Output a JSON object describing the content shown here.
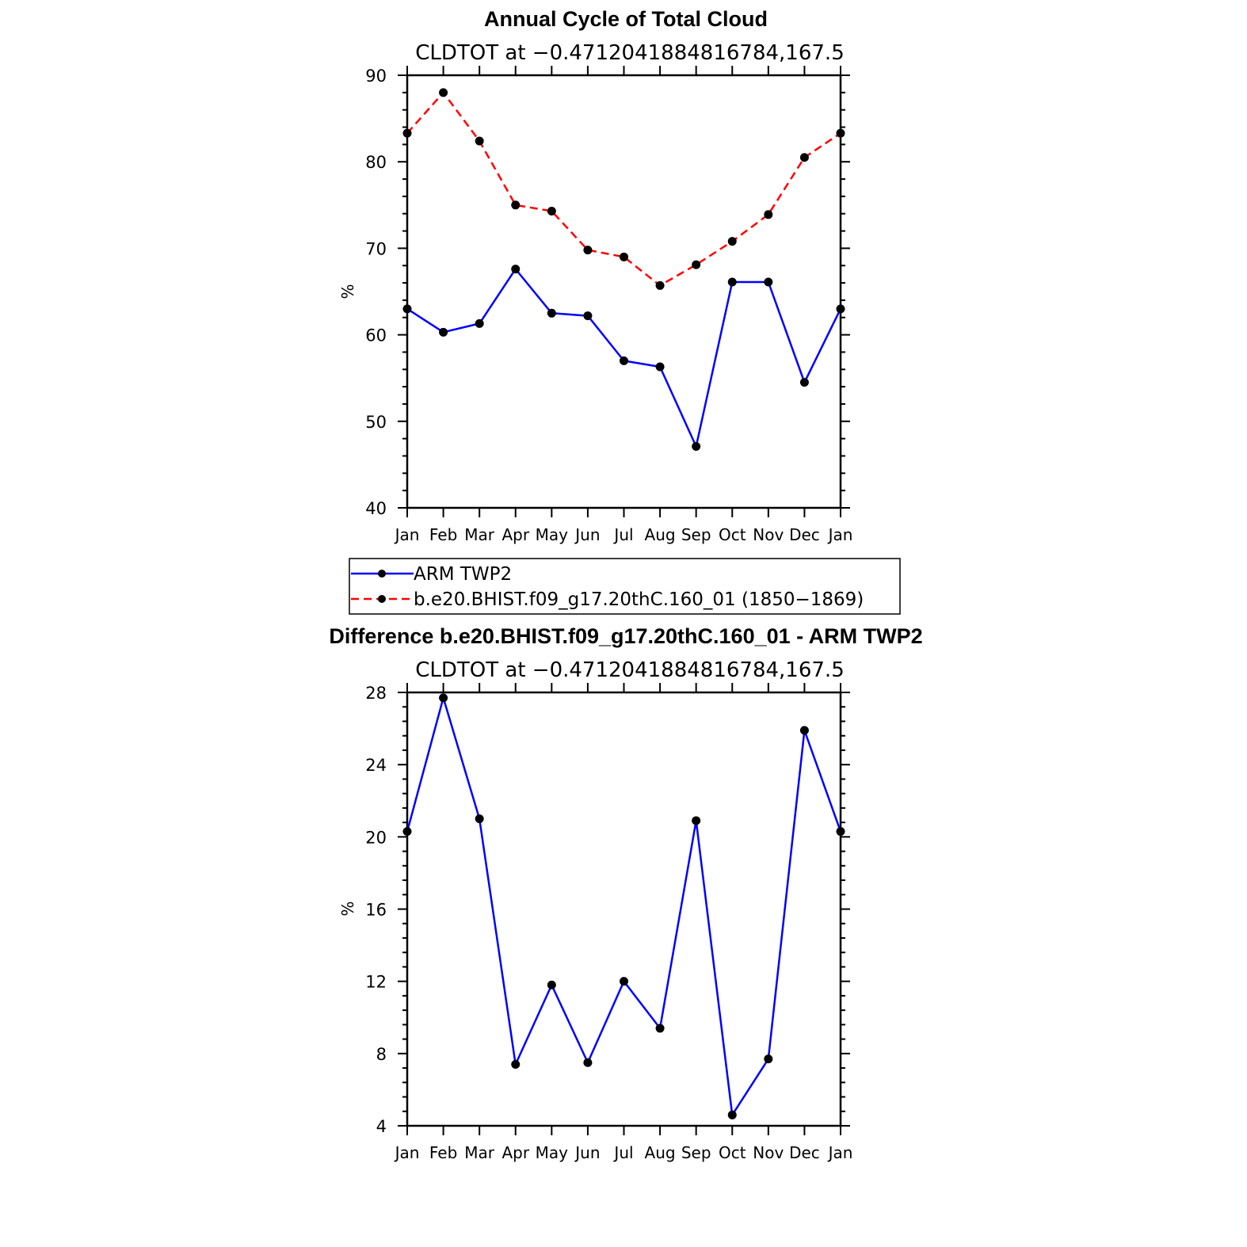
{
  "colors": {
    "obs": "#0000ff",
    "model": "#ff0000",
    "marker": "#000000",
    "axis": "#000000"
  },
  "chart_data": [
    {
      "type": "line",
      "title": "Annual Cycle of Total Cloud",
      "subtitle": "CLDTOT at −0.4712041884816784,167.5",
      "ylabel": "%",
      "xlabel": "",
      "categories": [
        "Jan",
        "Feb",
        "Mar",
        "Apr",
        "May",
        "Jun",
        "Jul",
        "Aug",
        "Sep",
        "Oct",
        "Nov",
        "Dec",
        "Jan"
      ],
      "ylim": [
        40,
        90
      ],
      "yticks": [
        40,
        50,
        60,
        70,
        80,
        90
      ],
      "ytick_labels": [
        "40",
        "50",
        "60",
        "70",
        "80",
        "90"
      ],
      "grid": false,
      "legend_position": "below",
      "series": [
        {
          "name": "ARM TWP2",
          "style": "solid",
          "color": "#0000ff",
          "values": [
            63.0,
            60.3,
            61.3,
            67.6,
            62.5,
            62.2,
            57.0,
            56.3,
            47.1,
            66.1,
            66.1,
            54.5,
            63.0
          ]
        },
        {
          "name": "b.e20.BHIST.f09_g17.20thC.160_01 (1850−1869)",
          "style": "dashed",
          "color": "#ff0000",
          "values": [
            83.3,
            88.0,
            82.4,
            75.0,
            74.3,
            69.8,
            69.0,
            65.7,
            68.1,
            70.8,
            73.9,
            80.5,
            83.3
          ]
        }
      ]
    },
    {
      "type": "line",
      "title": "Difference b.e20.BHIST.f09_g17.20thC.160_01 - ARM TWP2",
      "subtitle": "CLDTOT at −0.4712041884816784,167.5",
      "ylabel": "%",
      "xlabel": "",
      "categories": [
        "Jan",
        "Feb",
        "Mar",
        "Apr",
        "May",
        "Jun",
        "Jul",
        "Aug",
        "Sep",
        "Oct",
        "Nov",
        "Dec",
        "Jan"
      ],
      "ylim": [
        4,
        28
      ],
      "yticks": [
        4,
        8,
        12,
        16,
        20,
        24,
        28
      ],
      "ytick_labels": [
        "4",
        "8",
        "12",
        "16",
        "20",
        "24",
        "28"
      ],
      "grid": false,
      "series": [
        {
          "name": "Difference",
          "style": "solid",
          "color": "#0000ff",
          "values": [
            20.3,
            27.7,
            21.0,
            7.4,
            11.8,
            7.5,
            12.0,
            9.4,
            20.9,
            4.6,
            7.7,
            25.9,
            20.3
          ]
        }
      ]
    }
  ]
}
